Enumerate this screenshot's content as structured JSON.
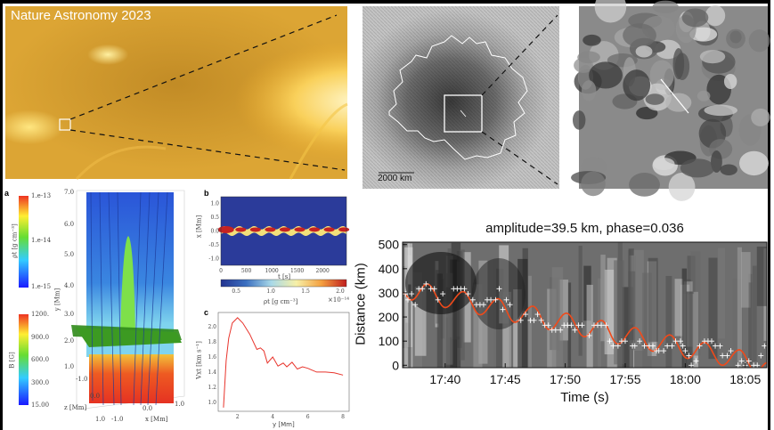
{
  "overlay_title": "Nature Astronomy 2023",
  "sunspot_image": {
    "scale_bar_label": "2000 km"
  },
  "panel_labels": {
    "a": "a",
    "b": "b",
    "c": "c"
  },
  "panel_a": {
    "density_colorbar": {
      "label": "ρt [g cm⁻³]",
      "ticks": [
        "1.e-13",
        "1.e-14",
        "1.e-15"
      ],
      "colormap": [
        "#1a1aff",
        "#33ccff",
        "#66dd33",
        "#ffee33",
        "#ee3322"
      ]
    },
    "field_colorbar": {
      "label": "B [G]",
      "ticks": [
        "1200.",
        "900.0",
        "600.0",
        "300.0",
        "15.00"
      ],
      "colormap": [
        "#1a1aff",
        "#33ccff",
        "#66dd33",
        "#ffee33",
        "#ee3322"
      ]
    },
    "axes": {
      "y_label": "y [Mm]",
      "y_ticks": [
        "7.0",
        "6.0",
        "5.0",
        "4.0",
        "3.0",
        "2.0",
        "1.0"
      ],
      "z_label": "z [Mm]",
      "z_ticks": [
        "-1.0",
        "0.0",
        "1.0"
      ],
      "x_label": "x [Mm]",
      "x_ticks": [
        "-1.0",
        "0.0",
        "1.0"
      ]
    }
  },
  "chart_data": [
    {
      "id": "b",
      "type": "heatmap",
      "xlabel": "t [s]",
      "ylabel": "x [Mm]",
      "xlim": [
        0,
        2470
      ],
      "ylim": [
        -1.25,
        1.25
      ],
      "xticks": [
        "0",
        "500",
        "1000",
        "1500",
        "2000"
      ],
      "yticks": [
        "1.0",
        "0.5",
        "0.0",
        "-0.5",
        "-1.0"
      ],
      "colorbar": {
        "label": "ρt [g cm⁻³]",
        "multiplier": "×10⁻¹⁴",
        "range": [
          0.28,
          2.09
        ],
        "ticks": [
          "0.5",
          "1.0",
          "1.5",
          "2.0"
        ]
      },
      "background_color": "#2b3b9a"
    },
    {
      "id": "c",
      "type": "line",
      "xlabel": "y [Mm]",
      "ylabel": "Vxt [km s⁻¹]",
      "xlim": [
        0.9,
        8.35
      ],
      "ylim": [
        0.88,
        2.19
      ],
      "xticks": [
        2,
        4,
        6,
        8
      ],
      "yticks": [
        1.0,
        1.2,
        1.4,
        1.6,
        1.8,
        2.0
      ],
      "color": "#e8342c",
      "x": [
        1.2,
        1.35,
        1.5,
        1.7,
        2.0,
        2.3,
        2.7,
        3.1,
        3.3,
        3.5,
        3.7,
        4.0,
        4.3,
        4.6,
        4.8,
        5.1,
        5.4,
        5.7,
        6.0,
        6.2,
        6.5,
        7.0,
        7.5,
        8.0
      ],
      "y": [
        0.93,
        1.55,
        1.85,
        2.05,
        2.12,
        2.05,
        1.9,
        1.7,
        1.72,
        1.68,
        1.52,
        1.6,
        1.48,
        1.52,
        1.47,
        1.53,
        1.44,
        1.47,
        1.45,
        1.43,
        1.4,
        1.4,
        1.39,
        1.36
      ]
    },
    {
      "id": "time-distance",
      "type": "scatter",
      "title": "amplitude=39.5 km, phase=0.036",
      "xlabel": "Time (s)",
      "ylabel": "Distance (km)",
      "xlim": [
        "17:36.45",
        "18:06.8"
      ],
      "ylim": [
        -10,
        510
      ],
      "xticks": [
        "17:40",
        "17:45",
        "17:50",
        "17:55",
        "18:00",
        "18:05"
      ],
      "yticks": [
        0,
        100,
        200,
        300,
        400,
        500
      ],
      "marker_color": "#ffffff",
      "fit_color": "#f04a1a",
      "points": [
        [
          "17:36.7",
          296
        ],
        [
          "17:36.9",
          271
        ],
        [
          "17:37.2",
          296
        ],
        [
          "17:37.5",
          251
        ],
        [
          "17:37.8",
          317
        ],
        [
          "17:38.1",
          317
        ],
        [
          "17:38.4",
          337
        ],
        [
          "17:38.8",
          317
        ],
        [
          "17:39.1",
          317
        ],
        [
          "17:39.4",
          271
        ],
        [
          "17:39.8",
          296
        ],
        [
          "17:40.7",
          317
        ],
        [
          "17:41.0",
          317
        ],
        [
          "17:41.3",
          317
        ],
        [
          "17:41.6",
          317
        ],
        [
          "17:41.9",
          296
        ],
        [
          "17:42.3",
          271
        ],
        [
          "17:42.6",
          251
        ],
        [
          "17:42.9",
          251
        ],
        [
          "17:43.2",
          251
        ],
        [
          "17:43.5",
          271
        ],
        [
          "17:43.8",
          271
        ],
        [
          "17:44.2",
          271
        ],
        [
          "17:44.5",
          317
        ],
        [
          "17:44.8",
          231
        ],
        [
          "17:45.1",
          271
        ],
        [
          "17:45.4",
          251
        ],
        [
          "17:46.3",
          186
        ],
        [
          "17:46.7",
          211
        ],
        [
          "17:47.1",
          186
        ],
        [
          "17:47.4",
          186
        ],
        [
          "17:47.7",
          211
        ],
        [
          "17:48.0",
          186
        ],
        [
          "17:48.3",
          166
        ],
        [
          "17:48.6",
          166
        ],
        [
          "17:48.9",
          146
        ],
        [
          "17:49.2",
          146
        ],
        [
          "17:49.6",
          146
        ],
        [
          "17:49.9",
          166
        ],
        [
          "17:50.2",
          166
        ],
        [
          "17:50.5",
          166
        ],
        [
          "17:50.8",
          146
        ],
        [
          "17:51.1",
          166
        ],
        [
          "17:51.4",
          166
        ],
        [
          "17:52.0",
          123
        ],
        [
          "17:52.4",
          166
        ],
        [
          "17:52.7",
          166
        ],
        [
          "17:53.0",
          166
        ],
        [
          "17:53.4",
          166
        ],
        [
          "17:53.7",
          100
        ],
        [
          "17:54.0",
          80
        ],
        [
          "17:54.4",
          80
        ],
        [
          "17:54.7",
          100
        ],
        [
          "17:55.0",
          100
        ],
        [
          "17:55.6",
          80
        ],
        [
          "17:55.8",
          80
        ],
        [
          "17:56.2",
          100
        ],
        [
          "17:56.6",
          80
        ],
        [
          "17:57.0",
          80
        ],
        [
          "17:57.3",
          80
        ],
        [
          "17:57.6",
          60
        ],
        [
          "17:57.8",
          60
        ],
        [
          "17:58.2",
          60
        ],
        [
          "17:58.5",
          80
        ],
        [
          "17:58.9",
          80
        ],
        [
          "17:59.2",
          100
        ],
        [
          "17:59.6",
          100
        ],
        [
          "17:59.8",
          80
        ],
        [
          "18:00.0",
          60
        ],
        [
          "18:00.3",
          40
        ],
        [
          "18:00.5",
          0
        ],
        [
          "18:00.9",
          18
        ],
        [
          "18:01.2",
          80
        ],
        [
          "18:01.6",
          100
        ],
        [
          "18:01.9",
          100
        ],
        [
          "18:02.2",
          100
        ],
        [
          "18:02.5",
          80
        ],
        [
          "18:02.9",
          80
        ],
        [
          "18:03.1",
          40
        ],
        [
          "18:03.5",
          40
        ],
        [
          "18:03.8",
          60
        ],
        [
          "18:04.4",
          0
        ],
        [
          "18:04.7",
          18
        ],
        [
          "18:05.0",
          0
        ],
        [
          "18:05.3",
          18
        ],
        [
          "18:05.7",
          0
        ],
        [
          "18:06.0",
          0
        ],
        [
          "18:06.3",
          40
        ],
        [
          "18:06.6",
          80
        ]
      ],
      "fit_extrema": [
        [
          "17:36.45",
          300
        ],
        [
          "17:37.2",
          270
        ],
        [
          "17:38.5",
          337
        ],
        [
          "17:40.0",
          239
        ],
        [
          "17:41.5",
          305
        ],
        [
          "17:42.9",
          209
        ],
        [
          "17:44.4",
          276
        ],
        [
          "17:45.8",
          178
        ],
        [
          "17:47.3",
          245
        ],
        [
          "17:48.7",
          147
        ],
        [
          "17:50.1",
          216
        ],
        [
          "17:51.6",
          118
        ],
        [
          "17:53.0",
          186
        ],
        [
          "17:54.4",
          88
        ],
        [
          "17:55.8",
          156
        ],
        [
          "17:57.3",
          58
        ],
        [
          "17:58.7",
          126
        ],
        [
          "18:00.2",
          28
        ],
        [
          "18:01.6",
          95
        ],
        [
          "18:03.1",
          0
        ],
        [
          "18:04.5",
          64
        ],
        [
          "18:05.9",
          -30
        ],
        [
          "18:06.8",
          10
        ]
      ]
    }
  ]
}
